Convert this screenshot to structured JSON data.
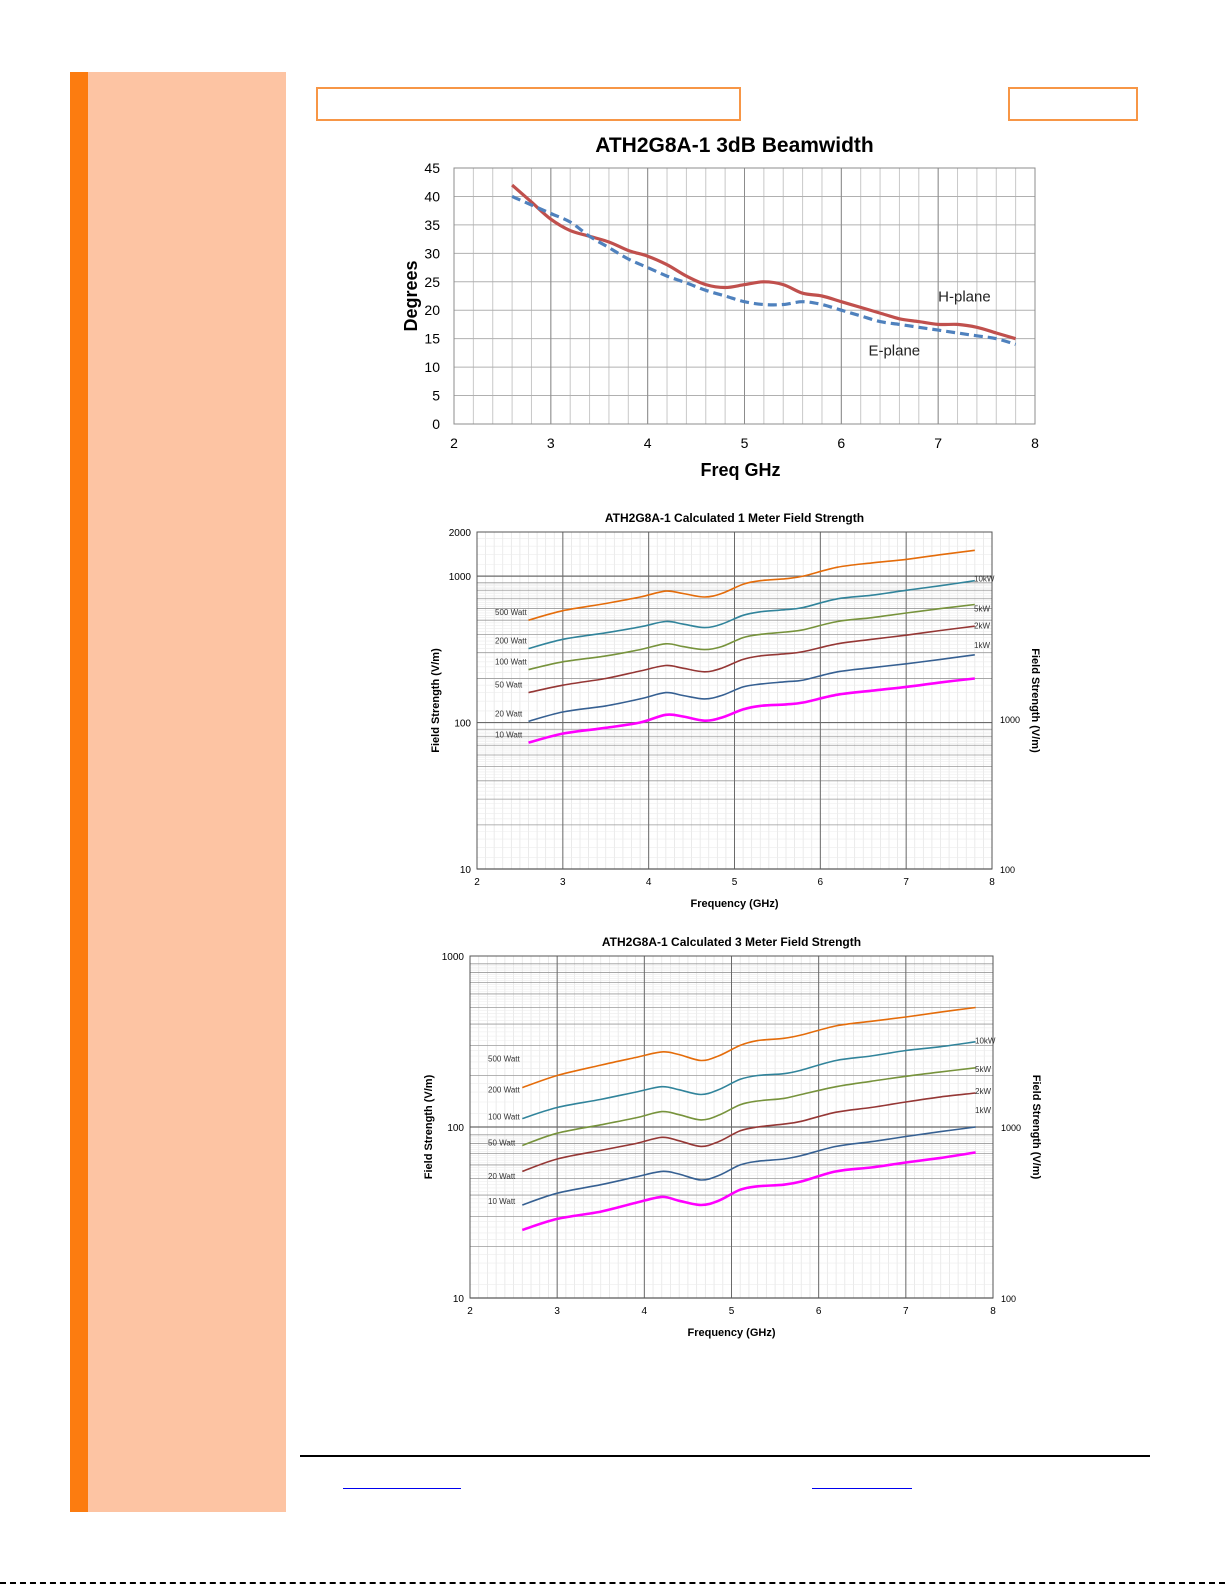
{
  "colors": {
    "sidebar": "#fdc4a3",
    "sidebar_stripe": "#fc7c10",
    "header_border": "#f79646"
  },
  "chart_data": [
    {
      "type": "line",
      "title": "ATH2G8A-1 3dB Beamwidth",
      "xlabel": "Freq GHz",
      "ylabel": "Degrees",
      "xlim": [
        2,
        8
      ],
      "ylim": [
        0,
        45
      ],
      "xticks": [
        2,
        3,
        4,
        5,
        6,
        7,
        8
      ],
      "yticks": [
        0,
        5,
        10,
        15,
        20,
        25,
        30,
        35,
        40,
        45
      ],
      "grid": true,
      "series": [
        {
          "name": "H-plane",
          "color": "#c0504d",
          "style": "solid",
          "x": [
            2.6,
            2.8,
            3.0,
            3.2,
            3.4,
            3.6,
            3.8,
            4.0,
            4.2,
            4.4,
            4.6,
            4.8,
            5.0,
            5.2,
            5.4,
            5.6,
            5.8,
            6.0,
            6.2,
            6.4,
            6.6,
            6.8,
            7.0,
            7.2,
            7.4,
            7.6,
            7.8
          ],
          "values": [
            42,
            39,
            36,
            34,
            33,
            32,
            30.5,
            29.5,
            28,
            26,
            24.5,
            24,
            24.5,
            25,
            24.5,
            23,
            22.5,
            21.5,
            20.5,
            19.5,
            18.5,
            18,
            17.5,
            17.5,
            17,
            16,
            15
          ]
        },
        {
          "name": "E-plane",
          "color": "#4f81bd",
          "style": "dashed",
          "x": [
            2.6,
            2.8,
            3.0,
            3.2,
            3.4,
            3.6,
            3.8,
            4.0,
            4.2,
            4.4,
            4.6,
            4.8,
            5.0,
            5.2,
            5.4,
            5.6,
            5.8,
            6.0,
            6.2,
            6.4,
            6.6,
            6.8,
            7.0,
            7.2,
            7.4,
            7.6,
            7.8
          ],
          "values": [
            40,
            38.5,
            37,
            35.5,
            33,
            31,
            29,
            27.5,
            26,
            24.8,
            23.5,
            22.5,
            21.5,
            21,
            21,
            21.5,
            21,
            20,
            19,
            18,
            17.5,
            17,
            16.5,
            16,
            15.5,
            15,
            14
          ]
        }
      ],
      "annotations": [
        "H-plane",
        "E-plane"
      ]
    },
    {
      "type": "line",
      "title": "ATH2G8A-1 Calculated 1 Meter Field Strength",
      "xlabel": "Frequency (GHz)",
      "ylabel": "Field Strength (V/m)",
      "y2label": "Field Strength (V/m)",
      "xlim": [
        2,
        8
      ],
      "ylim": [
        10,
        2000
      ],
      "yscale": "log",
      "xticks": [
        2,
        3,
        4,
        5,
        6,
        7,
        8
      ],
      "yticks": [
        "10",
        "100",
        "1000",
        "2000"
      ],
      "y2ticks": [
        "100",
        "1000"
      ],
      "grid": true,
      "series_labels": [
        "500 Watt",
        "200 Watt",
        "100 Watt",
        "50 Watt",
        "20 Watt",
        "10 Watt"
      ],
      "right_labels": [
        "10kW",
        "5kW",
        "2kW",
        "1kW"
      ],
      "x": [
        2.6,
        3.0,
        3.5,
        3.9,
        4.2,
        4.4,
        4.65,
        4.85,
        5.1,
        5.3,
        5.6,
        5.8,
        6.2,
        6.6,
        7.0,
        7.4,
        7.8
      ],
      "series": [
        {
          "color": "#e46c0a",
          "values": [
            500,
            580,
            650,
            720,
            790,
            760,
            720,
            760,
            880,
            930,
            960,
            1000,
            1150,
            1230,
            1300,
            1400,
            1500
          ]
        },
        {
          "color": "#31849b",
          "values": [
            320,
            370,
            410,
            450,
            490,
            470,
            445,
            470,
            540,
            570,
            590,
            610,
            700,
            740,
            800,
            860,
            930
          ]
        },
        {
          "color": "#77933c",
          "values": [
            230,
            260,
            285,
            315,
            345,
            330,
            315,
            330,
            380,
            400,
            415,
            430,
            490,
            520,
            560,
            600,
            640
          ]
        },
        {
          "color": "#953735",
          "values": [
            160,
            180,
            200,
            225,
            245,
            235,
            222,
            235,
            270,
            285,
            295,
            305,
            345,
            370,
            395,
            425,
            455
          ]
        },
        {
          "color": "#366092",
          "values": [
            102,
            118,
            130,
            145,
            160,
            153,
            145,
            153,
            175,
            183,
            190,
            195,
            222,
            237,
            252,
            270,
            290
          ]
        },
        {
          "color": "#ff00ff",
          "values": [
            73,
            84,
            92,
            100,
            113,
            110,
            103,
            108,
            123,
            130,
            133,
            137,
            155,
            165,
            175,
            188,
            200
          ]
        }
      ]
    },
    {
      "type": "line",
      "title": "ATH2G8A-1 Calculated 3 Meter Field Strength",
      "xlabel": "Frequency (GHz)",
      "ylabel": "Field Strength (V/m)",
      "y2label": "Field Strength (V/m)",
      "xlim": [
        2,
        8
      ],
      "ylim": [
        10,
        1000
      ],
      "yscale": "log",
      "xticks": [
        2,
        3,
        4,
        5,
        6,
        7,
        8
      ],
      "yticks": [
        "10",
        "100",
        "1000"
      ],
      "y2ticks": [
        "100",
        "1000"
      ],
      "grid": true,
      "series_labels": [
        "500 Watt",
        "200 Watt",
        "100 Watt",
        "50 Watt",
        "20 Watt",
        "10 Watt"
      ],
      "right_labels": [
        "10kW",
        "5kW",
        "2kW",
        "1kW"
      ],
      "x": [
        2.6,
        3.0,
        3.5,
        3.9,
        4.2,
        4.4,
        4.65,
        4.85,
        5.1,
        5.3,
        5.6,
        5.8,
        6.2,
        6.6,
        7.0,
        7.4,
        7.8
      ],
      "series": [
        {
          "color": "#e46c0a",
          "values": [
            170,
            200,
            230,
            255,
            275,
            265,
            245,
            260,
            300,
            320,
            330,
            345,
            390,
            415,
            440,
            470,
            500
          ]
        },
        {
          "color": "#31849b",
          "values": [
            112,
            130,
            145,
            160,
            172,
            165,
            155,
            165,
            190,
            200,
            205,
            215,
            245,
            260,
            280,
            295,
            315
          ]
        },
        {
          "color": "#77933c",
          "values": [
            78,
            92,
            103,
            113,
            123,
            118,
            110,
            117,
            135,
            142,
            147,
            155,
            172,
            185,
            198,
            210,
            222
          ]
        },
        {
          "color": "#953735",
          "values": [
            55,
            65,
            73,
            80,
            87,
            83,
            77,
            82,
            95,
            100,
            104,
            108,
            122,
            130,
            140,
            150,
            158
          ]
        },
        {
          "color": "#366092",
          "values": [
            35,
            41,
            46,
            51,
            55,
            53,
            49,
            52,
            60,
            63,
            65,
            68,
            77,
            82,
            88,
            94,
            100
          ]
        },
        {
          "color": "#ff00ff",
          "values": [
            25,
            29,
            32,
            36,
            39,
            37,
            35,
            37,
            43,
            45,
            46,
            48,
            55,
            58,
            62,
            66,
            71
          ]
        }
      ]
    }
  ]
}
